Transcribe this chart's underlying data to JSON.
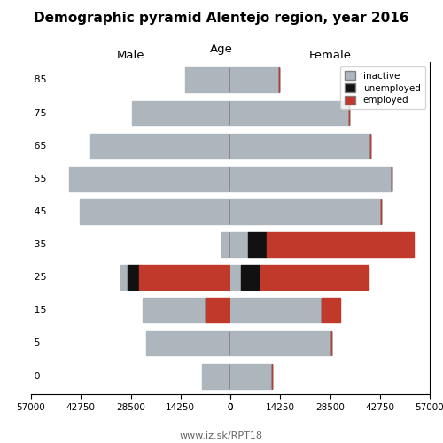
{
  "title": "Demographic pyramid Alentejo region, year 2016",
  "age_groups": [
    0,
    5,
    15,
    25,
    35,
    45,
    55,
    65,
    75,
    85
  ],
  "male": {
    "inactive": [
      8000,
      24000,
      18000,
      2000,
      2500,
      43000,
      46000,
      40000,
      28000,
      13000
    ],
    "unemployed": [
      0,
      0,
      0,
      3500,
      0,
      0,
      0,
      0,
      0,
      0
    ],
    "employed": [
      0,
      0,
      7000,
      26000,
      0,
      0,
      0,
      0,
      0,
      0
    ]
  },
  "female": {
    "inactive": [
      12000,
      29000,
      26000,
      3000,
      5000,
      43000,
      46000,
      40000,
      34000,
      14000
    ],
    "unemployed": [
      0,
      0,
      0,
      5500,
      5500,
      0,
      0,
      0,
      0,
      0
    ],
    "employed": [
      0,
      0,
      5500,
      31000,
      42000,
      0,
      0,
      0,
      0,
      0
    ]
  },
  "xlim": 57000,
  "color_inactive": "#adb5bd",
  "color_unemployed": "#111111",
  "color_employed": "#c0392b",
  "color_inactive_edge": "#888888",
  "background": "#ffffff"
}
